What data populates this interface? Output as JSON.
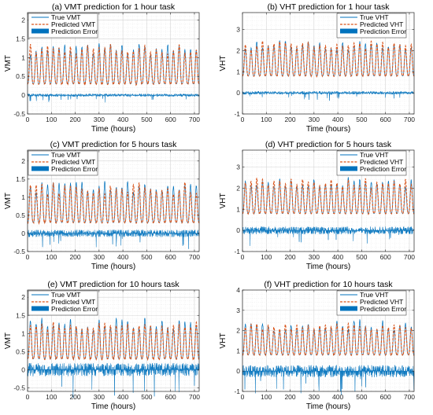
{
  "colors": {
    "true": "#0072BD",
    "predicted": "#D95319",
    "error": "#0072BD",
    "grid": "#d9d9d9"
  },
  "legend_labels": {
    "vmt": [
      "True VMT",
      "Predicted VMT",
      "Prediction Error"
    ],
    "vht": [
      "True VHT",
      "Predicted VHT",
      "Prediction Error"
    ]
  },
  "chart_data": [
    {
      "id": "a",
      "type": "line",
      "title": "(a) VMT prediction for 1 hour task",
      "xlabel": "Time (hours)",
      "ylabel": "VMT",
      "xlim": [
        0,
        720
      ],
      "ylim": [
        -0.5,
        2.2
      ],
      "xticks": [
        0,
        100,
        200,
        300,
        400,
        500,
        600,
        700
      ],
      "yticks": [
        -0.5,
        0,
        0.5,
        1,
        1.5,
        2
      ],
      "ytick_labels": [
        "-0.5",
        "0",
        "0.5",
        "1",
        "1.5",
        "2"
      ],
      "grid": true,
      "legend": "top-left",
      "series": [
        {
          "name": "True VMT",
          "period_hours": 24,
          "baseline": 0.3,
          "peak_mean": 1.22,
          "peak_range": 0.3,
          "style": "solid"
        },
        {
          "name": "Predicted VMT",
          "period_hours": 24,
          "baseline": 0.3,
          "peak_mean": 1.22,
          "peak_range": 0.3,
          "style": "dashed"
        },
        {
          "name": "Prediction Error",
          "style": "area",
          "amplitude": 0.04
        }
      ]
    },
    {
      "id": "b",
      "type": "line",
      "title": "(b) VHT prediction for 1 hour task",
      "xlabel": "Time (hours)",
      "ylabel": "VHT",
      "xlim": [
        0,
        720
      ],
      "ylim": [
        -1,
        3.8
      ],
      "xticks": [
        0,
        100,
        200,
        300,
        400,
        500,
        600,
        700
      ],
      "yticks": [
        -1,
        0,
        1,
        2,
        3
      ],
      "ytick_labels": [
        "-1",
        "0",
        "1",
        "2",
        "3"
      ],
      "grid": true,
      "legend": "top-right",
      "series": [
        {
          "name": "True VHT",
          "period_hours": 24,
          "baseline": 0.8,
          "peak_mean": 2.25,
          "peak_range": 0.45,
          "style": "solid"
        },
        {
          "name": "Predicted VHT",
          "period_hours": 24,
          "baseline": 0.8,
          "peak_mean": 2.25,
          "peak_range": 0.45,
          "style": "dashed"
        },
        {
          "name": "Prediction Error",
          "style": "area",
          "amplitude": 0.08
        }
      ]
    },
    {
      "id": "c",
      "type": "line",
      "title": "(c) VMT prediction for 5 hours task",
      "xlabel": "Time (hours)",
      "ylabel": "VMT",
      "xlim": [
        0,
        720
      ],
      "ylim": [
        -0.5,
        2.3
      ],
      "xticks": [
        0,
        100,
        200,
        300,
        400,
        500,
        600,
        700
      ],
      "yticks": [
        -0.5,
        0,
        0.5,
        1,
        1.5,
        2
      ],
      "ytick_labels": [
        "-0.5",
        "0",
        "0.5",
        "1",
        "1.5",
        "2"
      ],
      "grid": true,
      "legend": "top-left",
      "series": [
        {
          "name": "True VMT",
          "period_hours": 24,
          "baseline": 0.3,
          "peak_mean": 1.25,
          "peak_range": 0.35,
          "style": "solid"
        },
        {
          "name": "Predicted VMT",
          "period_hours": 24,
          "baseline": 0.3,
          "peak_mean": 1.25,
          "peak_range": 0.35,
          "style": "dashed"
        },
        {
          "name": "Prediction Error",
          "style": "area",
          "amplitude": 0.1
        }
      ]
    },
    {
      "id": "d",
      "type": "line",
      "title": "(d) VHT prediction for 5 hours task",
      "xlabel": "Time (hours)",
      "ylabel": "VHT",
      "xlim": [
        0,
        720
      ],
      "ylim": [
        -1,
        3.8
      ],
      "xticks": [
        0,
        100,
        200,
        300,
        400,
        500,
        600,
        700
      ],
      "yticks": [
        -1,
        0,
        1,
        2,
        3
      ],
      "ytick_labels": [
        "-1",
        "0",
        "1",
        "2",
        "3"
      ],
      "grid": true,
      "legend": "top-right",
      "series": [
        {
          "name": "True VHT",
          "period_hours": 24,
          "baseline": 0.8,
          "peak_mean": 2.25,
          "peak_range": 0.45,
          "style": "solid"
        },
        {
          "name": "Predicted VHT",
          "period_hours": 24,
          "baseline": 0.8,
          "peak_mean": 2.25,
          "peak_range": 0.45,
          "style": "dashed"
        },
        {
          "name": "Prediction Error",
          "style": "area",
          "amplitude": 0.18
        }
      ]
    },
    {
      "id": "e",
      "type": "line",
      "title": "(e) VMT prediction for 10 hours task",
      "xlabel": "Time (hours)",
      "ylabel": "VMT",
      "xlim": [
        0,
        720
      ],
      "ylim": [
        -0.6,
        2.2
      ],
      "xticks": [
        0,
        100,
        200,
        300,
        400,
        500,
        600,
        700
      ],
      "yticks": [
        -0.5,
        0,
        0.5,
        1,
        1.5,
        2
      ],
      "ytick_labels": [
        "-0.5",
        "0",
        "0.5",
        "1",
        "1.5",
        "2"
      ],
      "grid": true,
      "legend": "top-left",
      "series": [
        {
          "name": "True VMT",
          "period_hours": 24,
          "baseline": 0.3,
          "peak_mean": 1.25,
          "peak_range": 0.35,
          "style": "solid"
        },
        {
          "name": "Predicted VMT",
          "period_hours": 24,
          "baseline": 0.3,
          "peak_mean": 1.2,
          "peak_range": 0.2,
          "style": "dashed"
        },
        {
          "name": "Prediction Error",
          "style": "area",
          "amplitude": 0.18
        }
      ]
    },
    {
      "id": "f",
      "type": "line",
      "title": "(f) VHT prediction for 10 hours task",
      "xlabel": "Time (hours)",
      "ylabel": "VHT",
      "xlim": [
        0,
        720
      ],
      "ylim": [
        -1,
        4
      ],
      "xticks": [
        0,
        100,
        200,
        300,
        400,
        500,
        600,
        700
      ],
      "yticks": [
        -1,
        0,
        1,
        2,
        3,
        4
      ],
      "ytick_labels": [
        "-1",
        "0",
        "1",
        "2",
        "3",
        "4"
      ],
      "grid": true,
      "legend": "top-right",
      "series": [
        {
          "name": "True VHT",
          "period_hours": 24,
          "baseline": 0.8,
          "peak_mean": 2.25,
          "peak_range": 0.5,
          "style": "solid"
        },
        {
          "name": "Predicted VHT",
          "period_hours": 24,
          "baseline": 0.8,
          "peak_mean": 2.2,
          "peak_range": 0.3,
          "style": "dashed"
        },
        {
          "name": "Prediction Error",
          "style": "area",
          "amplitude": 0.3
        }
      ]
    }
  ]
}
